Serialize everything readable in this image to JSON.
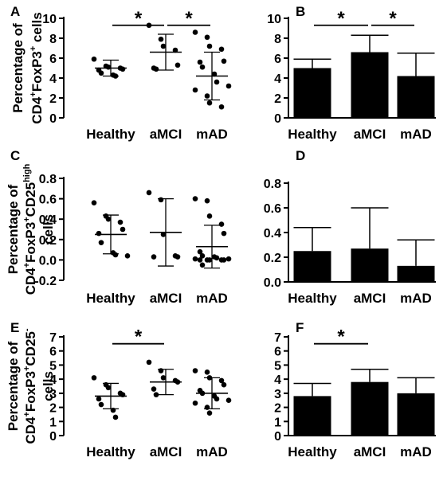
{
  "chart_data": [
    {
      "panel": "A",
      "type": "scatter",
      "ylabel_lines": [
        [
          "Percentage of"
        ],
        [
          "CD4",
          {
            "sup": "+"
          },
          "FoxP3",
          {
            "sup": "+"
          },
          " cells"
        ]
      ],
      "categories": [
        "Healthy",
        "aMCI",
        "mAD"
      ],
      "ylim": [
        0,
        10
      ],
      "yticks": [
        0,
        2,
        4,
        6,
        8,
        10
      ],
      "groups": [
        {
          "mean": 5.0,
          "sd": 0.8,
          "points": [
            5.9,
            5.2,
            5.1,
            5.0,
            4.9,
            4.8,
            4.5,
            4.3,
            4.2
          ]
        },
        {
          "mean": 6.6,
          "sd": 1.8,
          "points": [
            9.3,
            7.9,
            7.2,
            6.8,
            5.3,
            5.0,
            4.9
          ]
        },
        {
          "mean": 4.2,
          "sd": 2.4,
          "points": [
            8.6,
            8.1,
            7.2,
            6.9,
            5.7,
            5.6,
            5.1,
            4.4,
            3.6,
            3.2,
            2.8,
            2.2,
            1.5,
            1.1
          ]
        }
      ],
      "significance": [
        {
          "from": 0,
          "to": 1,
          "label": "*"
        },
        {
          "from": 1,
          "to": 2,
          "label": "*"
        }
      ]
    },
    {
      "panel": "B",
      "type": "bar",
      "categories": [
        "Healthy",
        "aMCI",
        "mAD"
      ],
      "ylim": [
        0,
        10
      ],
      "yticks": [
        0,
        2,
        4,
        6,
        8,
        10
      ],
      "values": [
        5.0,
        6.6,
        4.2
      ],
      "errors": [
        0.9,
        1.7,
        2.3
      ],
      "significance": [
        {
          "from": 0,
          "to": 1,
          "label": "*"
        },
        {
          "from": 1,
          "to": 2,
          "label": "*"
        }
      ]
    },
    {
      "panel": "C",
      "type": "scatter",
      "ylabel_lines": [
        [
          "Percentage of"
        ],
        [
          "CD4",
          {
            "sup": "+"
          },
          "FoxP3",
          {
            "sup": "+"
          },
          "CD25",
          {
            "sup": "high"
          }
        ],
        [
          "cells"
        ]
      ],
      "categories": [
        "Healthy",
        "aMCI",
        "mAD"
      ],
      "ylim": [
        -0.2,
        0.8
      ],
      "yticks": [
        -0.2,
        0.0,
        0.2,
        0.4,
        0.6,
        0.8
      ],
      "groups": [
        {
          "mean": 0.25,
          "sd": 0.19,
          "points": [
            0.56,
            0.43,
            0.4,
            0.37,
            0.3,
            0.26,
            0.17,
            0.07,
            0.05,
            0.04
          ]
        },
        {
          "mean": 0.27,
          "sd": 0.33,
          "points": [
            0.66,
            0.59,
            0.25,
            0.04,
            0.03,
            0.03
          ]
        },
        {
          "mean": 0.13,
          "sd": 0.21,
          "points": [
            0.6,
            0.58,
            0.43,
            0.35,
            0.26,
            0.08,
            0.04,
            0.03,
            0.02,
            0.01,
            0.01,
            0.0,
            0.0,
            0.0,
            0.0,
            0.0,
            -0.05
          ]
        }
      ],
      "significance": []
    },
    {
      "panel": "D",
      "type": "bar",
      "categories": [
        "Healthy",
        "aMCI",
        "mAD"
      ],
      "ylim": [
        0,
        0.8
      ],
      "yticks": [
        0.0,
        0.2,
        0.4,
        0.6,
        0.8
      ],
      "values": [
        0.25,
        0.27,
        0.13
      ],
      "errors": [
        0.19,
        0.33,
        0.21
      ],
      "significance": []
    },
    {
      "panel": "E",
      "type": "scatter",
      "ylabel_lines": [
        [
          "Percentage of"
        ],
        [
          "CD4",
          {
            "sup": "+"
          },
          "FoxP3",
          {
            "sup": "+"
          },
          "CD25",
          {
            "sup": "-"
          }
        ],
        [
          "cells"
        ]
      ],
      "categories": [
        "Healthy",
        "aMCI",
        "mAD"
      ],
      "ylim": [
        0,
        7
      ],
      "yticks": [
        0,
        1,
        2,
        3,
        4,
        5,
        6,
        7
      ],
      "groups": [
        {
          "mean": 2.8,
          "sd": 0.9,
          "points": [
            4.1,
            3.6,
            3.4,
            3.0,
            2.9,
            2.6,
            2.2,
            1.8,
            1.3
          ]
        },
        {
          "mean": 3.8,
          "sd": 0.9,
          "points": [
            5.2,
            4.6,
            4.1,
            3.9,
            3.8,
            3.3,
            2.9
          ]
        },
        {
          "mean": 3.0,
          "sd": 1.1,
          "points": [
            4.6,
            4.5,
            4.1,
            3.9,
            3.6,
            3.2,
            3.0,
            2.8,
            2.6,
            2.5,
            2.3,
            2.0,
            1.6
          ]
        }
      ],
      "significance": [
        {
          "from": 0,
          "to": 1,
          "label": "*"
        }
      ]
    },
    {
      "panel": "F",
      "type": "bar",
      "categories": [
        "Healthy",
        "aMCI",
        "mAD"
      ],
      "ylim": [
        0,
        7
      ],
      "yticks": [
        0,
        1,
        2,
        3,
        4,
        5,
        6,
        7
      ],
      "values": [
        2.8,
        3.8,
        3.0
      ],
      "errors": [
        0.9,
        0.9,
        1.1
      ],
      "significance": [
        {
          "from": 0,
          "to": 1,
          "label": "*"
        }
      ]
    }
  ]
}
